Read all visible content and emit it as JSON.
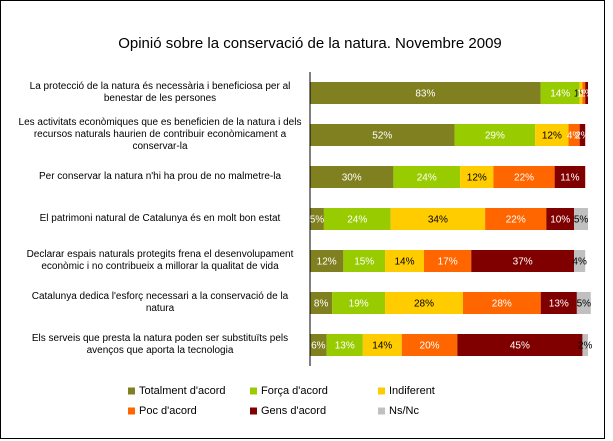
{
  "chart_data": {
    "type": "stacked-bar-horizontal",
    "title": "Opinió sobre la conservació de la natura. Novembre 2009",
    "categories": [
      "La protecció de la natura és necessària i beneficiosa per al benestar de les persones",
      "Les activitats econòmiques que es beneficien de la natura i dels recursos naturals haurien de contribuir econòmicament a conservar-la",
      "Per conservar la natura n'hi ha prou de no malmetre-la",
      "El patrimoni natural de Catalunya és en molt bon estat",
      "Declarar espais naturals protegits frena el desenvolupament econòmic i no contribueix a millorar la qualitat de vida",
      "Catalunya dedica l'esforç necessari a la conservació de la natura",
      "Els serveis que presta la natura poden ser substituïts pels avenços que aporta la tecnologia"
    ],
    "xlim": [
      0,
      100
    ],
    "series": [
      {
        "name": "Totalment d'acord",
        "color": "#808020",
        "values": [
          83,
          52,
          30,
          5,
          12,
          8,
          6
        ],
        "value_labels": [
          "83%",
          "52%",
          "30%",
          "5%",
          "12%",
          "8%",
          "6%"
        ]
      },
      {
        "name": "Força d'acord",
        "color": "#99cc00",
        "values": [
          14,
          29,
          24,
          24,
          15,
          19,
          13
        ],
        "value_labels": [
          "14%",
          "29%",
          "24%",
          "24%",
          "15%",
          "19%",
          "13%"
        ]
      },
      {
        "name": "Indiferent",
        "color": "#ffcc00",
        "values": [
          1,
          12,
          12,
          34,
          14,
          28,
          14
        ],
        "value_labels": [
          "1%",
          "12%",
          "12%",
          "34%",
          "14%",
          "28%",
          "14%"
        ]
      },
      {
        "name": "Poc d'acord",
        "color": "#ff6600",
        "values": [
          1,
          4,
          22,
          22,
          17,
          28,
          20
        ],
        "value_labels": [
          "1%",
          "4%",
          "22%",
          "22%",
          "17%",
          "28%",
          "20%"
        ]
      },
      {
        "name": "Gens d'acord",
        "color": "#800000",
        "values": [
          1,
          2,
          11,
          10,
          37,
          13,
          45
        ],
        "value_labels": [
          "1%",
          "2%",
          "11%",
          "10%",
          "37%",
          "13%",
          "45%"
        ]
      },
      {
        "name": "Ns/Nc",
        "color": "#c0c0c0",
        "values": [
          null,
          null,
          null,
          5,
          4,
          5,
          2
        ],
        "value_labels": [
          null,
          null,
          null,
          "5%",
          "4%",
          "5%",
          "2%"
        ]
      }
    ],
    "legend": "bottom"
  }
}
